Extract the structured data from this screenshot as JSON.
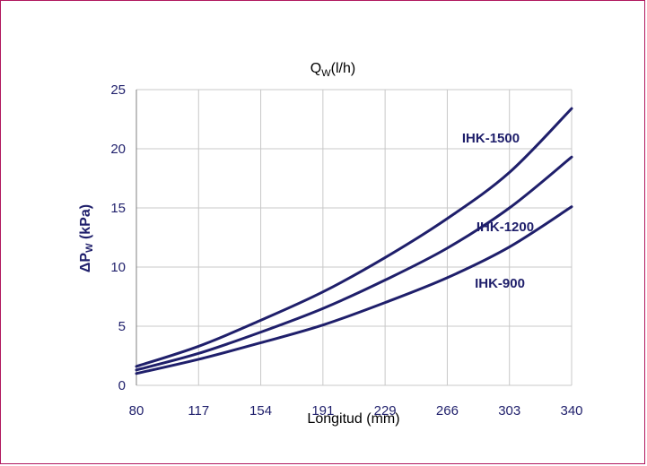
{
  "chart_data": {
    "type": "line",
    "title": {
      "main": "Q",
      "sub": "W",
      "rest": "(l/h)"
    },
    "xlabel": "Longitud (mm)",
    "ylabel": {
      "delta": "Δ",
      "main": "P",
      "sub": "W",
      "rest": " (kPa)"
    },
    "categories": [
      "80",
      "117",
      "154",
      "191",
      "229",
      "266",
      "303",
      "340"
    ],
    "x_ticks": [
      80,
      117,
      154,
      191,
      229,
      266,
      303,
      340
    ],
    "ylim": [
      0,
      25
    ],
    "y_ticks": [
      0,
      5,
      10,
      15,
      20,
      25
    ],
    "grid": true,
    "colors": {
      "line": "#1f1f6b",
      "grid": "#c8c8c8",
      "frame": "#b0185e"
    },
    "series": [
      {
        "name": "IHK-1500",
        "values": [
          1.6,
          3.3,
          5.5,
          7.9,
          10.8,
          14.1,
          18.0,
          23.4
        ]
      },
      {
        "name": "IHK-1200",
        "values": [
          1.3,
          2.7,
          4.5,
          6.5,
          8.9,
          11.6,
          15.0,
          19.3
        ]
      },
      {
        "name": "IHK-900",
        "values": [
          1.0,
          2.2,
          3.6,
          5.1,
          7.0,
          9.1,
          11.7,
          15.1
        ]
      }
    ]
  }
}
